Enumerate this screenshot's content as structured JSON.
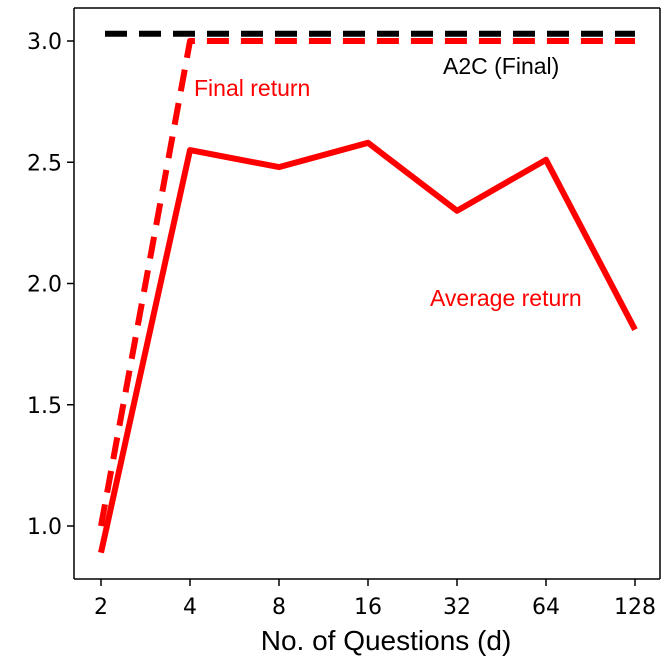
{
  "chart_data": {
    "type": "line",
    "xlabel": "No. of Questions (d)",
    "ylabel": "",
    "title": "",
    "categories": [
      "2",
      "4",
      "8",
      "16",
      "32",
      "64",
      "128"
    ],
    "x_scale": "log2",
    "ylim": [
      0.78,
      3.15
    ],
    "yticks": [
      "1.0",
      "1.5",
      "2.0",
      "2.5",
      "3.0"
    ],
    "grid": false,
    "series": [
      {
        "name": "Average return",
        "color": "#ff0000",
        "style": "solid",
        "values": [
          0.89,
          2.55,
          2.48,
          2.58,
          2.3,
          2.51,
          1.81
        ]
      },
      {
        "name": "Final return",
        "color": "#ff0000",
        "style": "dashed",
        "values": [
          1.0,
          3.0,
          3.0,
          3.0,
          3.0,
          3.0,
          3.0
        ]
      },
      {
        "name": "A2C (Final)",
        "color": "#000000",
        "style": "dashed",
        "values": [
          3.03,
          3.03,
          3.03,
          3.03,
          3.03,
          3.03,
          3.03
        ]
      }
    ],
    "annotations": [
      {
        "text": "A2C (Final)",
        "color": "#000000"
      },
      {
        "text": "Final return",
        "color": "#ff0000"
      },
      {
        "text": "Average return",
        "color": "#ff0000"
      }
    ]
  }
}
